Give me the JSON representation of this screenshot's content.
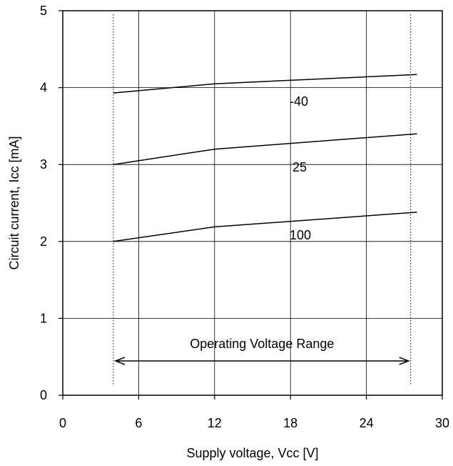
{
  "chart_data": {
    "type": "line",
    "title": "",
    "xlabel": "Supply voltage, Vcc [V]",
    "ylabel": "Circuit current, Icc [mA]",
    "xlim": [
      0,
      30
    ],
    "ylim": [
      0,
      5
    ],
    "x_ticks": [
      0,
      6,
      12,
      18,
      24,
      30
    ],
    "y_ticks": [
      0,
      1,
      2,
      3,
      4,
      5
    ],
    "grid": true,
    "series": [
      {
        "name": "-40",
        "x": [
          4,
          12,
          28
        ],
        "y": [
          3.93,
          4.05,
          4.17
        ]
      },
      {
        "name": "25",
        "x": [
          4,
          12,
          28
        ],
        "y": [
          3.0,
          3.2,
          3.4
        ]
      },
      {
        "name": "100",
        "x": [
          4,
          12,
          28
        ],
        "y": [
          2.0,
          2.19,
          2.38
        ]
      }
    ],
    "annotation": {
      "text": "Operating Voltage Range",
      "range": [
        4,
        27.5
      ]
    }
  }
}
